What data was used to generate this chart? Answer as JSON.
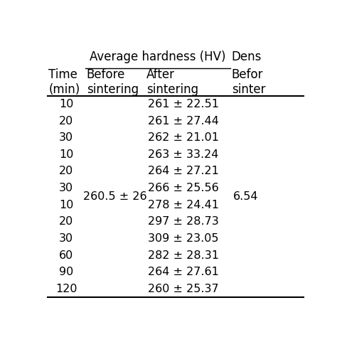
{
  "col_headers_row1_span": "Average hardness (HV)",
  "col_headers_row1_partial": "Dens",
  "col_headers_row2": [
    "Time\n(min)",
    "Before\nsintering",
    "After\nsintering",
    "Befor\nsinter"
  ],
  "rows": [
    [
      "10",
      "",
      "261 ± 22.51",
      ""
    ],
    [
      "20",
      "",
      "261 ± 27.44",
      ""
    ],
    [
      "30",
      "",
      "262 ± 21.01",
      ""
    ],
    [
      "10",
      "",
      "263 ± 33.24",
      ""
    ],
    [
      "20",
      "",
      "264 ± 27.21",
      ""
    ],
    [
      "30",
      "260.5 ± 26",
      "266 ± 25.56",
      "6.54"
    ],
    [
      "10",
      "",
      "278 ± 24.41",
      ""
    ],
    [
      "20",
      "",
      "297 ± 28.73",
      ""
    ],
    [
      "30",
      "",
      "309 ± 23.05",
      ""
    ],
    [
      "60",
      "",
      "282 ± 28.31",
      ""
    ],
    [
      "90",
      "",
      "264 ± 27.61",
      ""
    ],
    [
      "120",
      "",
      "260 ± 25.37",
      ""
    ]
  ],
  "bg_color": "#ffffff",
  "text_color": "#000000",
  "font_size": 11.5,
  "header_font_size": 12
}
